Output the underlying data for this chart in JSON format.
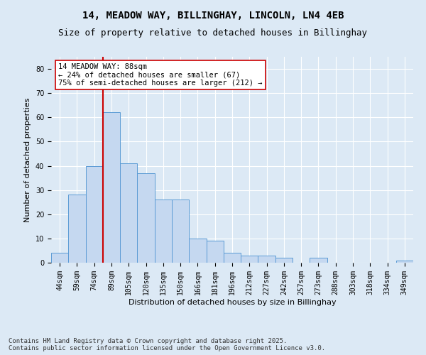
{
  "title_line1": "14, MEADOW WAY, BILLINGHAY, LINCOLN, LN4 4EB",
  "title_line2": "Size of property relative to detached houses in Billinghay",
  "xlabel": "Distribution of detached houses by size in Billinghay",
  "ylabel": "Number of detached properties",
  "categories": [
    "44sqm",
    "59sqm",
    "74sqm",
    "89sqm",
    "105sqm",
    "120sqm",
    "135sqm",
    "150sqm",
    "166sqm",
    "181sqm",
    "196sqm",
    "212sqm",
    "227sqm",
    "242sqm",
    "257sqm",
    "273sqm",
    "288sqm",
    "303sqm",
    "318sqm",
    "334sqm",
    "349sqm"
  ],
  "values": [
    4,
    28,
    40,
    62,
    41,
    37,
    26,
    26,
    10,
    9,
    4,
    3,
    3,
    2,
    0,
    2,
    0,
    0,
    0,
    0,
    1
  ],
  "bar_color": "#c5d8f0",
  "bar_edge_color": "#5b9bd5",
  "vline_x": 2.5,
  "vline_color": "#cc0000",
  "annotation_text": "14 MEADOW WAY: 88sqm\n← 24% of detached houses are smaller (67)\n75% of semi-detached houses are larger (212) →",
  "annotation_box_color": "#ffffff",
  "annotation_box_edge_color": "#cc0000",
  "ylim": [
    0,
    85
  ],
  "yticks": [
    0,
    10,
    20,
    30,
    40,
    50,
    60,
    70,
    80
  ],
  "bg_color": "#dce9f5",
  "plot_bg_color": "#dce9f5",
  "footer_text": "Contains HM Land Registry data © Crown copyright and database right 2025.\nContains public sector information licensed under the Open Government Licence v3.0.",
  "title_fontsize": 10,
  "subtitle_fontsize": 9,
  "axis_label_fontsize": 8,
  "tick_fontsize": 7,
  "annotation_fontsize": 7.5,
  "footer_fontsize": 6.5
}
